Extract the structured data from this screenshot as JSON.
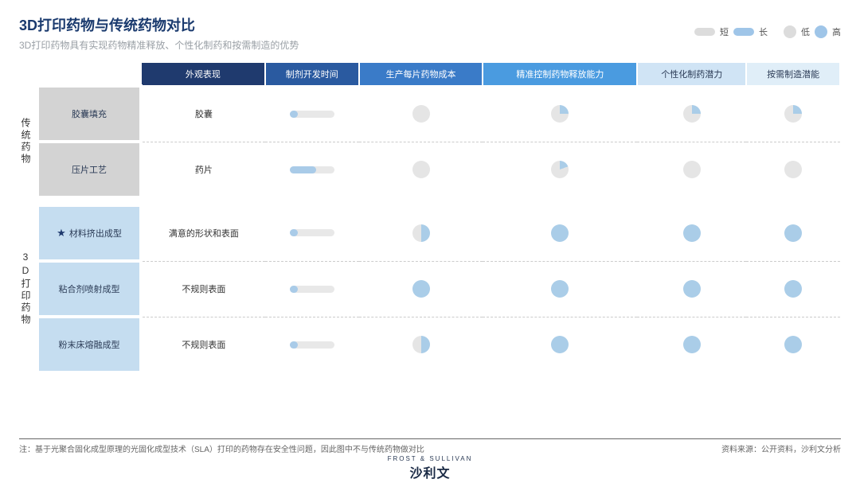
{
  "title": "3D打印药物与传统药物对比",
  "subtitle": "3D打印药物具有实现药物精准释放、个性化制药和按需制造的优势",
  "legend": {
    "short_label": "短",
    "long_label": "长",
    "low_label": "低",
    "high_label": "高",
    "short_color": "#dcdcdc",
    "long_color": "#9fc5e8",
    "low_color": "#dcdcdc",
    "high_color": "#9fc5e8"
  },
  "colors": {
    "hdr_dark": "#1f3a6e",
    "hdr_blue1": "#2a5aa0",
    "hdr_blue2": "#3a7bc8",
    "hdr_blue3": "#4a9be0",
    "hdr_light": "#d0e4f5",
    "hdr_light2": "#e0eef8",
    "hdr_light_txt": "#2a3a55",
    "row_grey": "#d3d3d3",
    "row_blue": "#c5ddf0",
    "pill_bg": "#e8e8e8",
    "pill_fill": "#a9cbe8",
    "pie_bg": "#e5e5e5",
    "pie_fill": "#aacde8"
  },
  "headers": [
    {
      "label": "外观表现",
      "bg_key": "hdr_dark",
      "txt": "#fff"
    },
    {
      "label": "制剂开发时间",
      "bg_key": "hdr_blue1",
      "txt": "#fff"
    },
    {
      "label": "生产每片药物成本",
      "bg_key": "hdr_blue2",
      "txt": "#fff"
    },
    {
      "label": "精准控制药物释放能力",
      "bg_key": "hdr_blue3",
      "txt": "#fff"
    },
    {
      "label": "个性化制药潜力",
      "bg_key": "hdr_light",
      "txt_key": "hdr_light_txt"
    },
    {
      "label": "按需制造潜能",
      "bg_key": "hdr_light2",
      "txt_key": "hdr_light_txt"
    }
  ],
  "groups": [
    {
      "label": "传统药物",
      "rowspan": 2,
      "row_bg_key": "row_grey"
    },
    {
      "label": "3D打印药物",
      "rowspan": 3,
      "row_bg_key": "row_blue"
    }
  ],
  "rows": [
    {
      "group": 0,
      "label": "胶囊填充",
      "star": false,
      "appearance": "胶囊",
      "dev_time_pct": 18,
      "cost_deg": 0,
      "release_deg": 90,
      "custom_deg": 90,
      "ondemand_deg": 90
    },
    {
      "group": 0,
      "label": "压片工艺",
      "star": false,
      "appearance": "药片",
      "dev_time_pct": 60,
      "cost_deg": 0,
      "release_deg": 70,
      "custom_deg": 0,
      "ondemand_deg": 0
    },
    {
      "group": 1,
      "label": "材料挤出成型",
      "star": true,
      "appearance": "满意的形状和表面",
      "dev_time_pct": 18,
      "cost_deg": 180,
      "release_deg": 360,
      "custom_deg": 360,
      "ondemand_deg": 360
    },
    {
      "group": 1,
      "label": "粘合剂喷射成型",
      "star": false,
      "appearance": "不规则表面",
      "dev_time_pct": 18,
      "cost_deg": 360,
      "release_deg": 360,
      "custom_deg": 360,
      "ondemand_deg": 360
    },
    {
      "group": 1,
      "label": "粉末床熔融成型",
      "star": false,
      "appearance": "不规则表面",
      "dev_time_pct": 18,
      "cost_deg": 180,
      "release_deg": 360,
      "custom_deg": 360,
      "ondemand_deg": 360
    }
  ],
  "footnote_left": "注：基于光聚合固化成型原理的光固化成型技术（SLA）打印的药物存在安全性问题，因此图中不与传统药物做对比",
  "footnote_right": "资料来源：公开资料，沙利文分析",
  "brand_fs": "FROST & SULLIVAN",
  "brand_cn": "沙利文"
}
